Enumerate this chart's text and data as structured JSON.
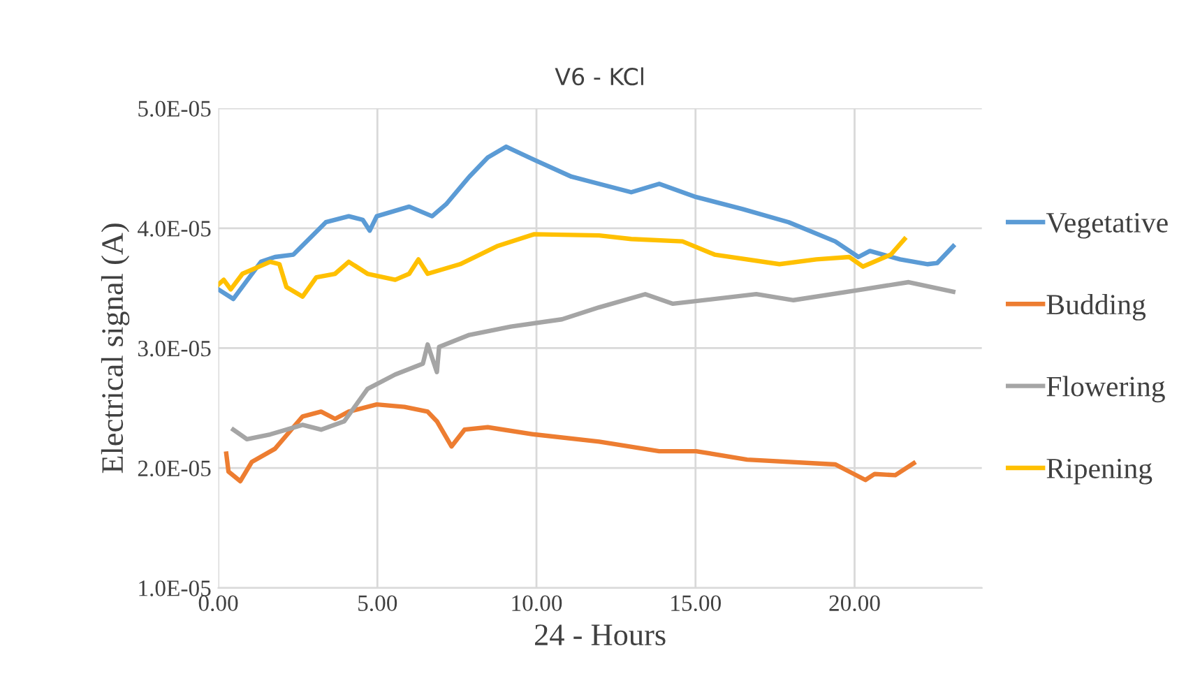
{
  "chart_data": {
    "type": "line",
    "title": "V6 - KCl",
    "xlabel": "24 - Hours",
    "ylabel": "Electrical signal (A)",
    "xlim": [
      0,
      24
    ],
    "xticks": [
      {
        "value": 0,
        "label": "0.00"
      },
      {
        "value": 5,
        "label": "5.00"
      },
      {
        "value": 10,
        "label": "10.00"
      },
      {
        "value": 15,
        "label": "15.00"
      },
      {
        "value": 20,
        "label": "20.00"
      }
    ],
    "ylim": [
      1e-05,
      5e-05
    ],
    "yticks": [
      {
        "value": 1e-05,
        "label": "1.0E-05"
      },
      {
        "value": 2e-05,
        "label": "2.0E-05"
      },
      {
        "value": 3e-05,
        "label": "3.0E-05"
      },
      {
        "value": 4e-05,
        "label": "4.0E-05"
      },
      {
        "value": 5e-05,
        "label": "5.0E-05"
      }
    ],
    "grid": true,
    "legend": "right",
    "marker": "none",
    "line_style": "solid",
    "series": [
      {
        "name": "Vegetative",
        "color": "#5b9bd5",
        "x": [
          0,
          0.47,
          1.34,
          1.78,
          2.36,
          3.38,
          4.1,
          4.54,
          4.76,
          4.98,
          6.0,
          6.72,
          7.16,
          7.89,
          8.47,
          9.05,
          9.93,
          11.1,
          12.98,
          13.86,
          15.02,
          16.48,
          17.93,
          19.39,
          20.12,
          20.48,
          21.43,
          22.3,
          22.6,
          23.1
        ],
        "values": [
          3.49e-05,
          3.41e-05,
          3.72e-05,
          3.76e-05,
          3.78e-05,
          4.05e-05,
          4.1e-05,
          4.07e-05,
          3.98e-05,
          4.1e-05,
          4.18e-05,
          4.1e-05,
          4.2e-05,
          4.43e-05,
          4.59e-05,
          4.68e-05,
          4.57e-05,
          4.43e-05,
          4.3e-05,
          4.37e-05,
          4.26e-05,
          4.16e-05,
          4.05e-05,
          3.89e-05,
          3.76e-05,
          3.81e-05,
          3.74e-05,
          3.7e-05,
          3.71e-05,
          3.85e-05
        ]
      },
      {
        "name": "Budding",
        "color": "#ed7d31",
        "x": [
          0.25,
          0.32,
          0.69,
          1.05,
          1.78,
          2.65,
          3.23,
          3.67,
          4.1,
          4.98,
          5.85,
          6.58,
          6.87,
          7.33,
          7.74,
          8.47,
          9.93,
          11.97,
          13.86,
          15.02,
          16.62,
          19.39,
          19.83,
          20.34,
          20.63,
          21.28,
          21.86
        ],
        "values": [
          2.12e-05,
          1.97e-05,
          1.89e-05,
          2.05e-05,
          2.16e-05,
          2.43e-05,
          2.47e-05,
          2.41e-05,
          2.47e-05,
          2.53e-05,
          2.51e-05,
          2.47e-05,
          2.39e-05,
          2.18e-05,
          2.32e-05,
          2.34e-05,
          2.28e-05,
          2.22e-05,
          2.14e-05,
          2.14e-05,
          2.07e-05,
          2.03e-05,
          1.97e-05,
          1.9e-05,
          1.95e-05,
          1.94e-05,
          2.04e-05
        ]
      },
      {
        "name": "Flowering",
        "color": "#a5a5a5",
        "x": [
          0.47,
          0.9,
          1.63,
          2.65,
          3.23,
          3.96,
          4.69,
          5.56,
          6.43,
          6.58,
          6.87,
          6.94,
          7.89,
          9.2,
          10.8,
          11.97,
          13.42,
          14.29,
          16.91,
          18.08,
          20.26,
          21.7,
          23.1
        ],
        "values": [
          2.32e-05,
          2.24e-05,
          2.28e-05,
          2.36e-05,
          2.32e-05,
          2.39e-05,
          2.66e-05,
          2.78e-05,
          2.87e-05,
          3.03e-05,
          2.8e-05,
          3.01e-05,
          3.11e-05,
          3.18e-05,
          3.24e-05,
          3.34e-05,
          3.45e-05,
          3.37e-05,
          3.45e-05,
          3.4e-05,
          3.49e-05,
          3.55e-05,
          3.47e-05
        ]
      },
      {
        "name": "Ripening",
        "color": "#ffc000",
        "x": [
          0,
          0.17,
          0.39,
          0.76,
          1.63,
          1.92,
          2.14,
          2.65,
          3.08,
          3.67,
          4.1,
          4.69,
          5.56,
          6.0,
          6.29,
          6.58,
          7.6,
          8.76,
          9.93,
          11.97,
          12.98,
          14.59,
          15.6,
          17.64,
          18.8,
          19.83,
          20.26,
          21.14,
          21.57
        ],
        "values": [
          3.53e-05,
          3.57e-05,
          3.49e-05,
          3.62e-05,
          3.72e-05,
          3.7e-05,
          3.51e-05,
          3.43e-05,
          3.59e-05,
          3.62e-05,
          3.72e-05,
          3.62e-05,
          3.57e-05,
          3.62e-05,
          3.74e-05,
          3.62e-05,
          3.7e-05,
          3.85e-05,
          3.95e-05,
          3.94e-05,
          3.91e-05,
          3.89e-05,
          3.78e-05,
          3.7e-05,
          3.74e-05,
          3.76e-05,
          3.68e-05,
          3.78e-05,
          3.91e-05
        ]
      }
    ]
  }
}
